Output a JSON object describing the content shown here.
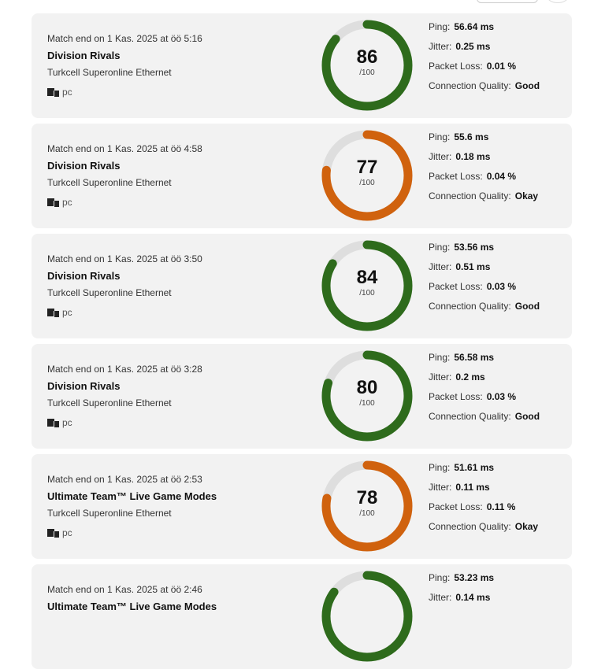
{
  "colors": {
    "good": "#2e6b1c",
    "okay": "#d0620e",
    "track": "#dedede"
  },
  "labels": {
    "ping": "Ping:",
    "jitter": "Jitter:",
    "loss": "Packet Loss:",
    "quality": "Connection Quality:",
    "of": "/100"
  },
  "matches": [
    {
      "date": "Match end on 1 Kas. 2025 at öö 5:16",
      "mode": "Division Rivals",
      "network": "Turkcell Superonline Ethernet",
      "platform": "pc",
      "score": "86",
      "progress": 0.86,
      "status": "good",
      "ping": "56.64 ms",
      "jitter": "0.25 ms",
      "loss": "0.01 %",
      "quality": "Good"
    },
    {
      "date": "Match end on 1 Kas. 2025 at öö 4:58",
      "mode": "Division Rivals",
      "network": "Turkcell Superonline Ethernet",
      "platform": "pc",
      "score": "77",
      "progress": 0.77,
      "status": "okay",
      "ping": "55.6 ms",
      "jitter": "0.18 ms",
      "loss": "0.04 %",
      "quality": "Okay"
    },
    {
      "date": "Match end on 1 Kas. 2025 at öö 3:50",
      "mode": "Division Rivals",
      "network": "Turkcell Superonline Ethernet",
      "platform": "pc",
      "score": "84",
      "progress": 0.84,
      "status": "good",
      "ping": "53.56 ms",
      "jitter": "0.51 ms",
      "loss": "0.03 %",
      "quality": "Good"
    },
    {
      "date": "Match end on 1 Kas. 2025 at öö 3:28",
      "mode": "Division Rivals",
      "network": "Turkcell Superonline Ethernet",
      "platform": "pc",
      "score": "80",
      "progress": 0.8,
      "status": "good",
      "ping": "56.58 ms",
      "jitter": "0.2 ms",
      "loss": "0.03 %",
      "quality": "Good"
    },
    {
      "date": "Match end on 1 Kas. 2025 at öö 2:53",
      "mode": "Ultimate Team™ Live Game Modes",
      "network": "Turkcell Superonline Ethernet",
      "platform": "pc",
      "score": "78",
      "progress": 0.78,
      "status": "okay",
      "ping": "51.61 ms",
      "jitter": "0.11 ms",
      "loss": "0.11 %",
      "quality": "Okay"
    },
    {
      "date": "Match end on 1 Kas. 2025 at öö 2:46",
      "mode": "Ultimate Team™ Live Game Modes",
      "status": "good",
      "progress": 0.85,
      "ping": "53.23 ms",
      "jitter": "0.14 ms"
    }
  ]
}
